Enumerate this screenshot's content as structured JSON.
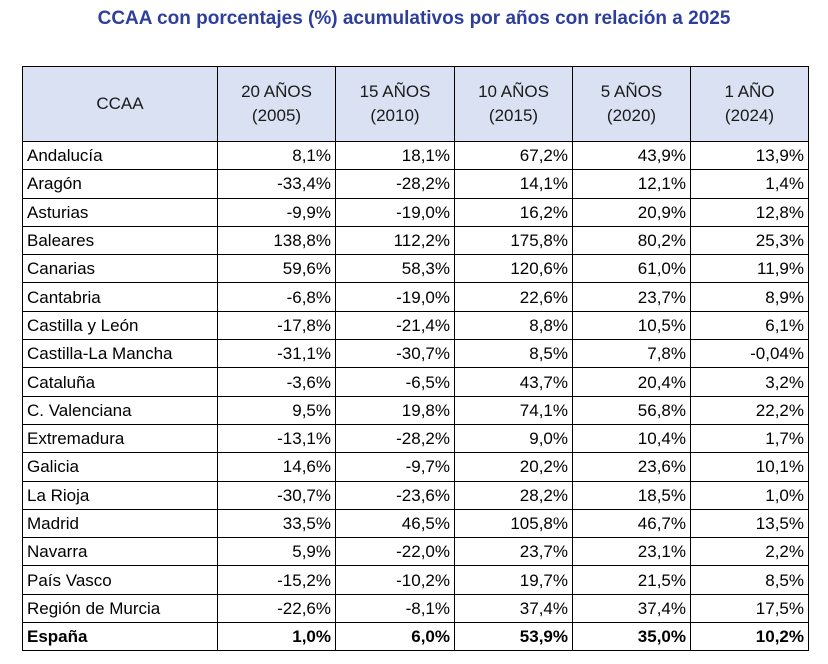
{
  "title": "CCAA con porcentajes (%) acumulativos por años con relación a 2025",
  "colors": {
    "title": "#2e3f9b",
    "header_bg": "#d9e1f2",
    "negative": "#c00000"
  },
  "headers": [
    {
      "line1": "CCAA",
      "line2": ""
    },
    {
      "line1": "20 AÑOS",
      "line2": "(2005)"
    },
    {
      "line1": "15 AÑOS",
      "line2": "(2010)"
    },
    {
      "line1": "10 AÑOS",
      "line2": "(2015)"
    },
    {
      "line1": "5 AÑOS",
      "line2": "(2020)"
    },
    {
      "line1": "1 AÑO",
      "line2": "(2024)"
    }
  ],
  "rows": [
    {
      "name": "Andalucía",
      "values": [
        "8,1%",
        "18,1%",
        "67,2%",
        "43,9%",
        "13,9%"
      ]
    },
    {
      "name": "Aragón",
      "values": [
        "-33,4%",
        "-28,2%",
        "14,1%",
        "12,1%",
        "1,4%"
      ]
    },
    {
      "name": "Asturias",
      "values": [
        "-9,9%",
        "-19,0%",
        "16,2%",
        "20,9%",
        "12,8%"
      ]
    },
    {
      "name": "Baleares",
      "values": [
        "138,8%",
        "112,2%",
        "175,8%",
        "80,2%",
        "25,3%"
      ]
    },
    {
      "name": "Canarias",
      "values": [
        "59,6%",
        "58,3%",
        "120,6%",
        "61,0%",
        "11,9%"
      ]
    },
    {
      "name": "Cantabria",
      "values": [
        "-6,8%",
        "-19,0%",
        "22,6%",
        "23,7%",
        "8,9%"
      ]
    },
    {
      "name": "Castilla y León",
      "values": [
        "-17,8%",
        "-21,4%",
        "8,8%",
        "10,5%",
        "6,1%"
      ]
    },
    {
      "name": "Castilla-La Mancha",
      "values": [
        "-31,1%",
        "-30,7%",
        "8,5%",
        "7,8%",
        "-0,04%"
      ]
    },
    {
      "name": "Cataluña",
      "values": [
        "-3,6%",
        "-6,5%",
        "43,7%",
        "20,4%",
        "3,2%"
      ]
    },
    {
      "name": "C. Valenciana",
      "values": [
        "9,5%",
        "19,8%",
        "74,1%",
        "56,8%",
        "22,2%"
      ]
    },
    {
      "name": "Extremadura",
      "values": [
        "-13,1%",
        "-28,2%",
        "9,0%",
        "10,4%",
        "1,7%"
      ]
    },
    {
      "name": "Galicia",
      "values": [
        "14,6%",
        "-9,7%",
        "20,2%",
        "23,6%",
        "10,1%"
      ]
    },
    {
      "name": "La Rioja",
      "values": [
        "-30,7%",
        "-23,6%",
        "28,2%",
        "18,5%",
        "1,0%"
      ]
    },
    {
      "name": "Madrid",
      "values": [
        "33,5%",
        "46,5%",
        "105,8%",
        "46,7%",
        "13,5%"
      ]
    },
    {
      "name": "Navarra",
      "values": [
        "5,9%",
        "-22,0%",
        "23,7%",
        "23,1%",
        "2,2%"
      ]
    },
    {
      "name": "País Vasco",
      "values": [
        "-15,2%",
        "-10,2%",
        "19,7%",
        "21,5%",
        "8,5%"
      ]
    },
    {
      "name": "Región de Murcia",
      "values": [
        "-22,6%",
        "-8,1%",
        "37,4%",
        "37,4%",
        "17,5%"
      ]
    }
  ],
  "total": {
    "name": "España",
    "values": [
      "1,0%",
      "6,0%",
      "53,9%",
      "35,0%",
      "10,2%"
    ]
  }
}
